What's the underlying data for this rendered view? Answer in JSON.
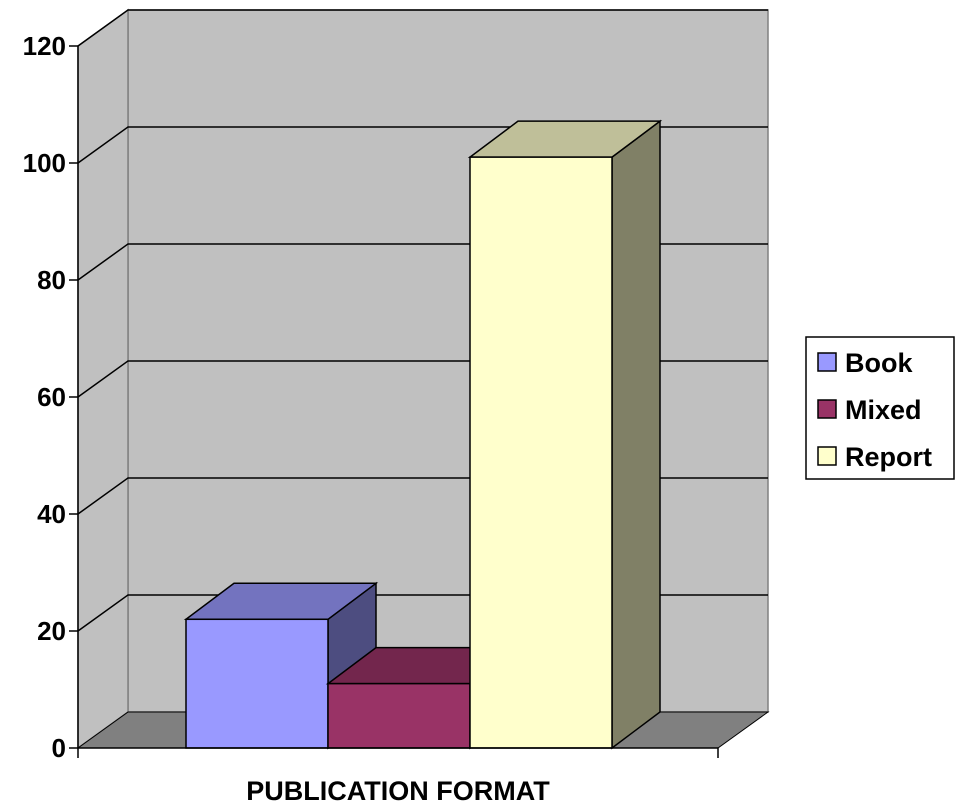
{
  "chart_data": {
    "type": "bar",
    "style": "3d-clustered-column",
    "title": "",
    "xlabel": "PUBLICATION FORMAT",
    "ylabel": "",
    "ylim": [
      0,
      120
    ],
    "yticks": [
      "0",
      "20",
      "40",
      "60",
      "80",
      "100",
      "120"
    ],
    "grid": true,
    "legend_position": "right",
    "series": [
      {
        "name": "Book",
        "values": [
          22
        ],
        "color": "#9999ff"
      },
      {
        "name": "Mixed",
        "values": [
          11
        ],
        "color": "#993366"
      },
      {
        "name": "Report",
        "values": [
          101
        ],
        "color": "#ffffcc"
      }
    ],
    "wall_color": "#c0c0c0",
    "floor_color": "#808080"
  }
}
